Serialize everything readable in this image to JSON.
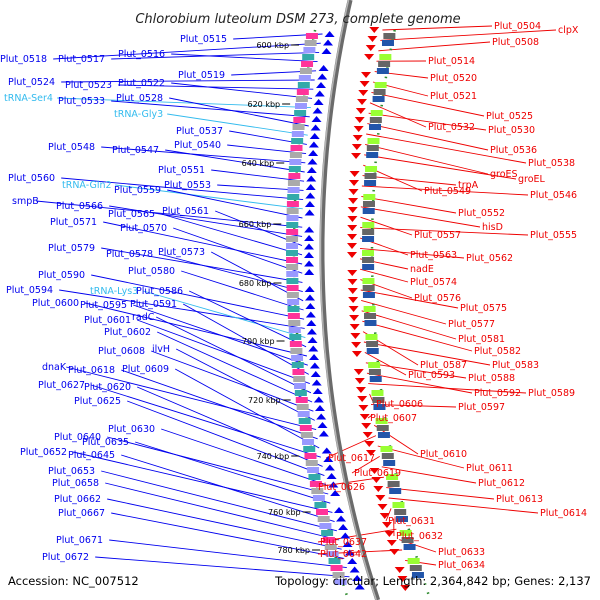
{
  "title": "Chlorobium luteolum DSM 273, complete genome",
  "footer": {
    "accession": "Accession: NC_007512",
    "info": "Topology: circular; Length: 2,364,842 bp; Genes: 2,137"
  },
  "colors": {
    "forward": "#0000ee",
    "reverse": "#ee0000",
    "rna": "#33bbee",
    "backbone": "#888888",
    "gc_dots": "#2e8b2e"
  },
  "kbp_ticks": [
    "600 kbp",
    "620 kbp",
    "640 kbp",
    "660 kbp",
    "680 kbp",
    "700 kbp",
    "720 kbp",
    "740 kbp",
    "760 kbp",
    "780 kbp"
  ],
  "left_labels": [
    "Plut_0515",
    "Plut_0518",
    "Plut_0517",
    "Plut_0516",
    "Plut_0519",
    "Plut_0524",
    "Plut_0523",
    "Plut_0522",
    "tRNA-Ser4",
    "Plut_0533",
    "Plut_0528",
    "tRNA-Gly3",
    "Plut_0537",
    "Plut_0540",
    "Plut_0548",
    "Plut_0547",
    "Plut_0551",
    "Plut_0553",
    "Plut_0560",
    "tRNA-Gln2",
    "Plut_0559",
    "smpB",
    "Plut_0566",
    "Plut_0561",
    "Plut_0565",
    "Plut_0571",
    "Plut_0570",
    "Plut_0579",
    "Plut_0578",
    "Plut_0573",
    "Plut_0580",
    "Plut_0590",
    "Plut_0594",
    "tRNA-Lys3",
    "Plut_0586",
    "Plut_0600",
    "Plut_0595",
    "Plut_0591",
    "Plut_0601",
    "radC",
    "Plut_0602",
    "Plut_0608",
    "ilvH",
    "dnaK",
    "Plut_0618",
    "Plut_0609",
    "Plut_0627",
    "Plut_0620",
    "Plut_0625",
    "Plut_0630",
    "Plut_0640",
    "Plut_0635",
    "Plut_0652",
    "Plut_0645",
    "Plut_0653",
    "Plut_0658",
    "Plut_0662",
    "Plut_0667",
    "Plut_0671",
    "Plut_0672"
  ],
  "right_labels": [
    "Plut_0504",
    "clpX",
    "Plut_0508",
    "Plut_0514",
    "Plut_0520",
    "Plut_0521",
    "Plut_0525",
    "Plut_0532",
    "Plut_0530",
    "Plut_0536",
    "Plut_0538",
    "groES",
    "groEL",
    "Plut_0549",
    "trpA",
    "Plut_0546",
    "Plut_0552",
    "hisD",
    "Plut_0557",
    "Plut_0555",
    "Plut_0563",
    "Plut_0562",
    "nadE",
    "Plut_0574",
    "Plut_0576",
    "Plut_0575",
    "Plut_0577",
    "Plut_0581",
    "Plut_0582",
    "Plut_0587",
    "Plut_0583",
    "Plut_0593",
    "Plut_0588",
    "Plut_0592",
    "Plut_0589",
    "Plut_0606",
    "Plut_0597",
    "Plut_0607",
    "Plut_0610",
    "Plut_0617",
    "Plut_0611",
    "Plut_0619",
    "Plut_0612",
    "Plut_0626",
    "Plut_0613",
    "Plut_0614",
    "Plut_0631",
    "Plut_0632",
    "Plut_0637",
    "Plut_0633",
    "Plut_0642",
    "Plut_0634"
  ]
}
